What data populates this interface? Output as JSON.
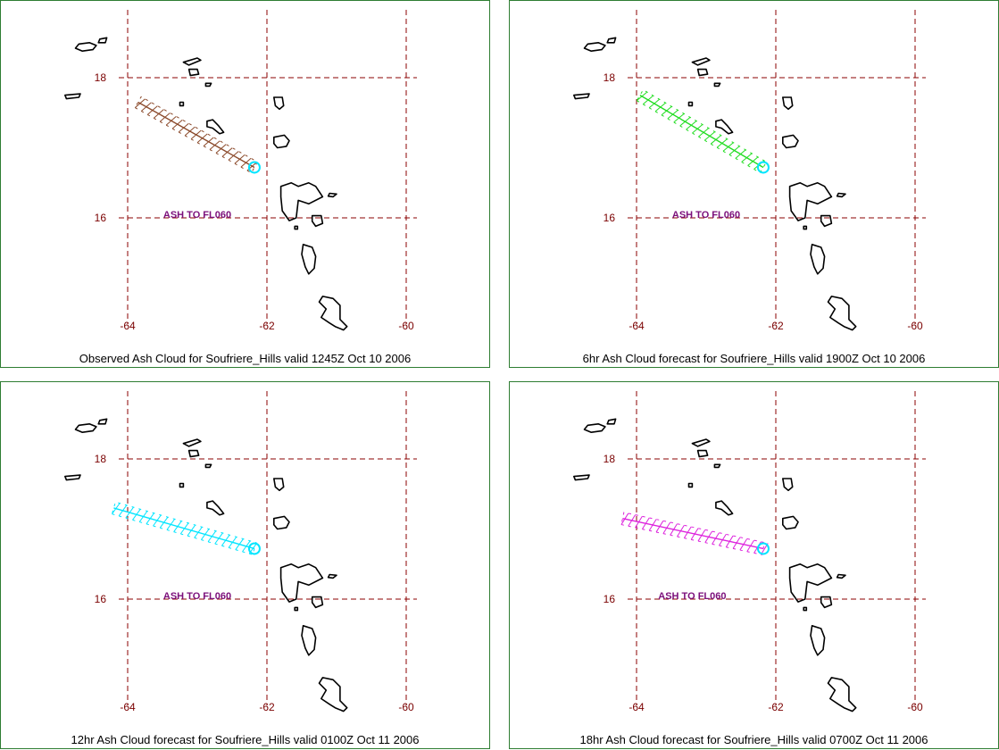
{
  "panels": [
    {
      "caption": "Observed Ash Cloud for Soufriere_Hills valid 1245Z Oct 10 2006",
      "ash_label": "ASH TO FL060",
      "cloud_color": "#8b4a2b",
      "vent_color": "#00e5ff",
      "cloud_start_lon": -63.85,
      "cloud_start_lat": 17.65
    },
    {
      "caption": "6hr Ash Cloud forecast for Soufriere_Hills valid 1900Z Oct 10 2006",
      "ash_label": "ASH TO FL060",
      "cloud_color": "#22dd22",
      "vent_color": "#00e5ff",
      "cloud_start_lon": -63.95,
      "cloud_start_lat": 17.75
    },
    {
      "caption": "12hr Ash Cloud forecast for Soufriere_Hills valid 0100Z Oct 11 2006",
      "ash_label": "ASH TO FL060",
      "cloud_color": "#00e5ff",
      "vent_color": "#00e5ff",
      "cloud_start_lon": -64.2,
      "cloud_start_lat": 17.3
    },
    {
      "caption": "18hr Ash Cloud forecast for Soufriere_Hills valid 0700Z Oct 11 2006",
      "ash_label": "ASH TO FL060",
      "cloud_color": "#dd22dd",
      "vent_color": "#00e5ff",
      "cloud_start_lon": -64.2,
      "cloud_start_lat": 17.15
    }
  ],
  "axes": {
    "lon_ticks": [
      -64,
      -62,
      -60
    ],
    "lat_ticks": [
      18,
      16
    ],
    "lon_labels": [
      "-64",
      "-62",
      "-60"
    ],
    "lat_labels": [
      "18",
      "16"
    ]
  },
  "vent": {
    "lon": -62.18,
    "lat": 16.72
  },
  "colors": {
    "grid": "#8b0000",
    "frame": "#2e7d32",
    "label": "#7a0000",
    "ash_text": "#7b0f7b"
  }
}
